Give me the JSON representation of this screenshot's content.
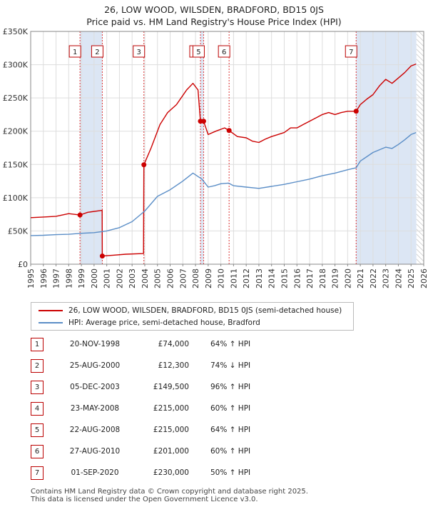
{
  "title": "26, LOW WOOD, WILSDEN, BRADFORD, BD15 0JS",
  "subtitle": "Price paid vs. HM Land Registry's House Price Index (HPI)",
  "colors": {
    "property": "#cc0000",
    "hpi": "#5b8ec7",
    "shade": "#dce6f4",
    "marker_border": "#bb0000"
  },
  "legend": {
    "property_label": "26, LOW WOOD, WILSDEN, BRADFORD, BD15 0JS (semi-detached house)",
    "hpi_label": "HPI: Average price, semi-detached house, Bradford"
  },
  "transactions": [
    {
      "num": "1",
      "date": "20-NOV-1998",
      "price": "£74,000",
      "hpi": "64% ↑ HPI"
    },
    {
      "num": "2",
      "date": "25-AUG-2000",
      "price": "£12,300",
      "hpi": "74% ↓ HPI"
    },
    {
      "num": "3",
      "date": "05-DEC-2003",
      "price": "£149,500",
      "hpi": "96% ↑ HPI"
    },
    {
      "num": "4",
      "date": "23-MAY-2008",
      "price": "£215,000",
      "hpi": "60% ↑ HPI"
    },
    {
      "num": "5",
      "date": "22-AUG-2008",
      "price": "£215,000",
      "hpi": "64% ↑ HPI"
    },
    {
      "num": "6",
      "date": "27-AUG-2010",
      "price": "£201,000",
      "hpi": "60% ↑ HPI"
    },
    {
      "num": "7",
      "date": "01-SEP-2020",
      "price": "£230,000",
      "hpi": "50% ↑ HPI"
    }
  ],
  "footer": {
    "line1": "Contains HM Land Registry data © Crown copyright and database right 2025.",
    "line2": "This data is licensed under the Open Government Licence v3.0."
  },
  "chart_data": {
    "type": "line",
    "title": "26, LOW WOOD, WILSDEN, BRADFORD, BD15 0JS",
    "subtitle": "Price paid vs. HM Land Registry's House Price Index (HPI)",
    "xlim": [
      1995,
      2026
    ],
    "ylim": [
      0,
      350000
    ],
    "x_ticks": [
      "1995",
      "1996",
      "1997",
      "1998",
      "1999",
      "2000",
      "2001",
      "2002",
      "2003",
      "2004",
      "2005",
      "2006",
      "2007",
      "2008",
      "2009",
      "2010",
      "2011",
      "2012",
      "2013",
      "2014",
      "2015",
      "2016",
      "2017",
      "2018",
      "2019",
      "2020",
      "2021",
      "2022",
      "2023",
      "2024",
      "2025",
      "2026"
    ],
    "y_ticks": [
      {
        "value": 0,
        "label": "£0"
      },
      {
        "value": 50000,
        "label": "£50K"
      },
      {
        "value": 100000,
        "label": "£100K"
      },
      {
        "value": 150000,
        "label": "£150K"
      },
      {
        "value": 200000,
        "label": "£200K"
      },
      {
        "value": 250000,
        "label": "£250K"
      },
      {
        "value": 300000,
        "label": "£300K"
      },
      {
        "value": 350000,
        "label": "£350K"
      }
    ],
    "grid": true,
    "legend_position": "below",
    "shaded_periods": [
      [
        1998.89,
        2000.65
      ],
      [
        2008.39,
        2008.64
      ],
      [
        2020.67,
        2025.42
      ]
    ],
    "future_start": 2025.42,
    "sale_markers": [
      {
        "label": "1",
        "x": 1998.89,
        "y": 74000
      },
      {
        "label": "2",
        "x": 2000.65,
        "y": 12300
      },
      {
        "label": "3",
        "x": 2003.93,
        "y": 149500
      },
      {
        "label": "4",
        "x": 2008.39,
        "y": 215000
      },
      {
        "label": "5",
        "x": 2008.64,
        "y": 215000
      },
      {
        "label": "6",
        "x": 2010.65,
        "y": 201000
      },
      {
        "label": "7",
        "x": 2020.67,
        "y": 230000
      }
    ],
    "series": [
      {
        "name": "26, LOW WOOD, WILSDEN, BRADFORD, BD15 0JS (semi-detached house)",
        "color": "#cc0000",
        "points": [
          [
            1995.0,
            70000
          ],
          [
            1996.0,
            71000
          ],
          [
            1997.0,
            72000
          ],
          [
            1998.0,
            76000
          ],
          [
            1998.89,
            74000
          ],
          [
            1999.5,
            78000
          ],
          [
            2000.64,
            81000
          ],
          [
            2000.65,
            12300
          ],
          [
            2001.5,
            13500
          ],
          [
            2002.5,
            15000
          ],
          [
            2003.9,
            16000
          ],
          [
            2003.93,
            149500
          ],
          [
            2004.5,
            175000
          ],
          [
            2005.2,
            210000
          ],
          [
            2005.8,
            228000
          ],
          [
            2006.5,
            240000
          ],
          [
            2007.3,
            262000
          ],
          [
            2007.8,
            272000
          ],
          [
            2008.2,
            262000
          ],
          [
            2008.39,
            215000
          ],
          [
            2008.64,
            215000
          ],
          [
            2009.0,
            195000
          ],
          [
            2009.6,
            200000
          ],
          [
            2010.3,
            205000
          ],
          [
            2010.65,
            201000
          ],
          [
            2011.3,
            192000
          ],
          [
            2012.0,
            190000
          ],
          [
            2012.5,
            185000
          ],
          [
            2013.0,
            183000
          ],
          [
            2013.5,
            188000
          ],
          [
            2014.0,
            192000
          ],
          [
            2014.5,
            195000
          ],
          [
            2015.0,
            198000
          ],
          [
            2015.5,
            205000
          ],
          [
            2016.0,
            205000
          ],
          [
            2016.5,
            210000
          ],
          [
            2017.0,
            215000
          ],
          [
            2017.5,
            220000
          ],
          [
            2018.0,
            225000
          ],
          [
            2018.5,
            228000
          ],
          [
            2019.0,
            225000
          ],
          [
            2019.5,
            228000
          ],
          [
            2020.0,
            230000
          ],
          [
            2020.67,
            230000
          ],
          [
            2021.0,
            240000
          ],
          [
            2021.5,
            248000
          ],
          [
            2022.0,
            255000
          ],
          [
            2022.5,
            268000
          ],
          [
            2023.0,
            278000
          ],
          [
            2023.5,
            272000
          ],
          [
            2024.0,
            280000
          ],
          [
            2024.5,
            288000
          ],
          [
            2025.0,
            298000
          ],
          [
            2025.4,
            301000
          ]
        ]
      },
      {
        "name": "HPI: Average price, semi-detached house, Bradford",
        "color": "#5b8ec7",
        "points": [
          [
            1995.0,
            43000
          ],
          [
            1996.0,
            43500
          ],
          [
            1997.0,
            44500
          ],
          [
            1998.0,
            45000
          ],
          [
            1999.0,
            46500
          ],
          [
            2000.0,
            47500
          ],
          [
            2001.0,
            50000
          ],
          [
            2002.0,
            55000
          ],
          [
            2003.0,
            64000
          ],
          [
            2004.0,
            80000
          ],
          [
            2005.0,
            102000
          ],
          [
            2006.0,
            112000
          ],
          [
            2007.0,
            125000
          ],
          [
            2007.8,
            137000
          ],
          [
            2008.5,
            128000
          ],
          [
            2009.0,
            116000
          ],
          [
            2009.5,
            118000
          ],
          [
            2010.0,
            121000
          ],
          [
            2010.6,
            122000
          ],
          [
            2011.0,
            118000
          ],
          [
            2012.0,
            116000
          ],
          [
            2013.0,
            114000
          ],
          [
            2014.0,
            117000
          ],
          [
            2015.0,
            120000
          ],
          [
            2016.0,
            124000
          ],
          [
            2017.0,
            128000
          ],
          [
            2018.0,
            133000
          ],
          [
            2019.0,
            137000
          ],
          [
            2020.0,
            142000
          ],
          [
            2020.67,
            145000
          ],
          [
            2021.0,
            155000
          ],
          [
            2022.0,
            168000
          ],
          [
            2023.0,
            176000
          ],
          [
            2023.5,
            174000
          ],
          [
            2024.0,
            180000
          ],
          [
            2024.5,
            187000
          ],
          [
            2025.0,
            195000
          ],
          [
            2025.4,
            198000
          ]
        ]
      }
    ]
  }
}
